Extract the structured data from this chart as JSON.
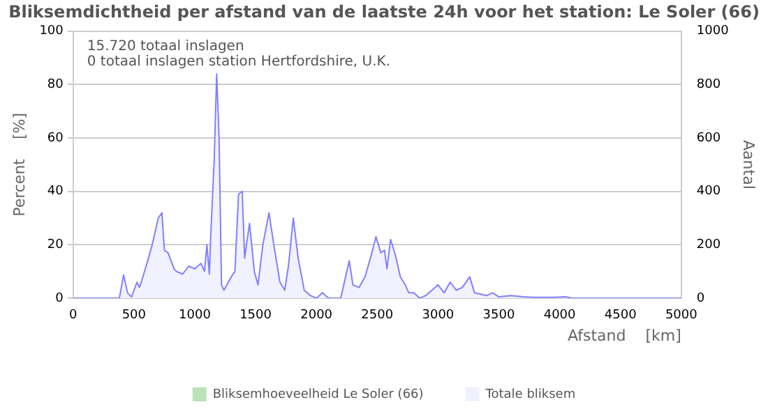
{
  "chart_data": {
    "type": "area",
    "title": "Bliksemdichtheid per afstand van de laatste 24h voor het station: Le Soler (66)",
    "xlabel": "Afstand    [km]",
    "ylabel": "Percent    [%]",
    "y2label": "Aantal",
    "annotations": [
      "15.720 totaal inslagen",
      "0 totaal inslagen station Hertfordshire, U.K."
    ],
    "xlim": [
      0,
      5000
    ],
    "xticks": [
      0,
      500,
      1000,
      1500,
      2000,
      2500,
      3000,
      3500,
      4000,
      4500,
      5000
    ],
    "ylim": [
      0,
      100
    ],
    "yticks": [
      0,
      20,
      40,
      60,
      80,
      100
    ],
    "y2lim": [
      0,
      1000
    ],
    "y2ticks": [
      0,
      200,
      400,
      600,
      800,
      1000
    ],
    "grid": "y",
    "legend": "bottom",
    "marker": "none",
    "series": [
      {
        "name": "Bliksemhoeveelheid Le Soler (66)",
        "color": "#b3e0b3"
      },
      {
        "name": "Totale bliksem",
        "color": "#8080ff",
        "axis": "y2",
        "x": [
          0,
          350,
          380,
          415,
          447,
          480,
          525,
          545,
          560,
          600,
          650,
          700,
          730,
          750,
          780,
          830,
          850,
          900,
          950,
          1000,
          1050,
          1080,
          1100,
          1120,
          1130,
          1160,
          1180,
          1200,
          1220,
          1240,
          1300,
          1330,
          1360,
          1390,
          1410,
          1450,
          1490,
          1520,
          1560,
          1610,
          1650,
          1700,
          1740,
          1770,
          1810,
          1850,
          1900,
          1950,
          2000,
          2050,
          2100,
          2200,
          2220,
          2270,
          2300,
          2350,
          2400,
          2450,
          2490,
          2530,
          2560,
          2580,
          2610,
          2650,
          2690,
          2730,
          2760,
          2800,
          2850,
          2900,
          3000,
          3050,
          3100,
          3150,
          3200,
          3260,
          3300,
          3400,
          3450,
          3500,
          3600,
          3700,
          3800,
          3950,
          4050,
          4100,
          5000
        ],
        "values": [
          0,
          0,
          0,
          87,
          20,
          5,
          60,
          40,
          60,
          120,
          200,
          300,
          320,
          180,
          170,
          110,
          100,
          90,
          120,
          110,
          130,
          100,
          200,
          90,
          220,
          520,
          840,
          600,
          50,
          30,
          80,
          100,
          390,
          400,
          150,
          280,
          100,
          50,
          200,
          320,
          200,
          60,
          30,
          120,
          300,
          150,
          30,
          10,
          0,
          20,
          0,
          0,
          40,
          140,
          50,
          40,
          80,
          160,
          230,
          170,
          180,
          110,
          220,
          160,
          80,
          50,
          20,
          20,
          0,
          10,
          50,
          20,
          60,
          30,
          40,
          80,
          20,
          10,
          20,
          5,
          10,
          5,
          3,
          3,
          5,
          0,
          0
        ]
      }
    ]
  }
}
